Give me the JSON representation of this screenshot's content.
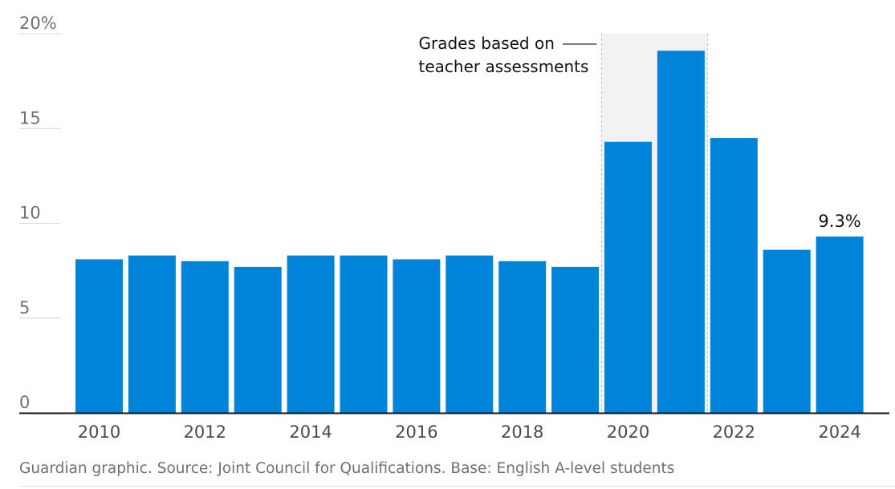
{
  "chart_data": {
    "type": "bar",
    "categories": [
      "2010",
      "2011",
      "2012",
      "2013",
      "2014",
      "2015",
      "2016",
      "2017",
      "2018",
      "2019",
      "2020",
      "2021",
      "2022",
      "2023",
      "2024"
    ],
    "values": [
      8.1,
      8.3,
      8.0,
      7.7,
      8.3,
      8.3,
      8.1,
      8.3,
      8.0,
      7.7,
      14.3,
      19.1,
      14.5,
      8.6,
      9.3
    ],
    "x_tick_labels": [
      "2010",
      "2012",
      "2014",
      "2016",
      "2018",
      "2020",
      "2022",
      "2024"
    ],
    "y_ticks": [
      0,
      5,
      10,
      15,
      20
    ],
    "y_tick_labels": [
      "0",
      "5",
      "10",
      "15",
      "20%"
    ],
    "ylim": [
      0,
      20
    ],
    "bar_color": "#0084d9",
    "grid": true,
    "annotation": {
      "lines": [
        "Grades based on",
        "teacher assessments"
      ],
      "span": [
        "2020",
        "2021"
      ],
      "shade_color": "#f2f2f2"
    },
    "data_label": {
      "category": "2024",
      "text": "9.3%"
    }
  },
  "source": "Guardian graphic. Source: Joint Council for Qualifications. Base: English A-level students"
}
